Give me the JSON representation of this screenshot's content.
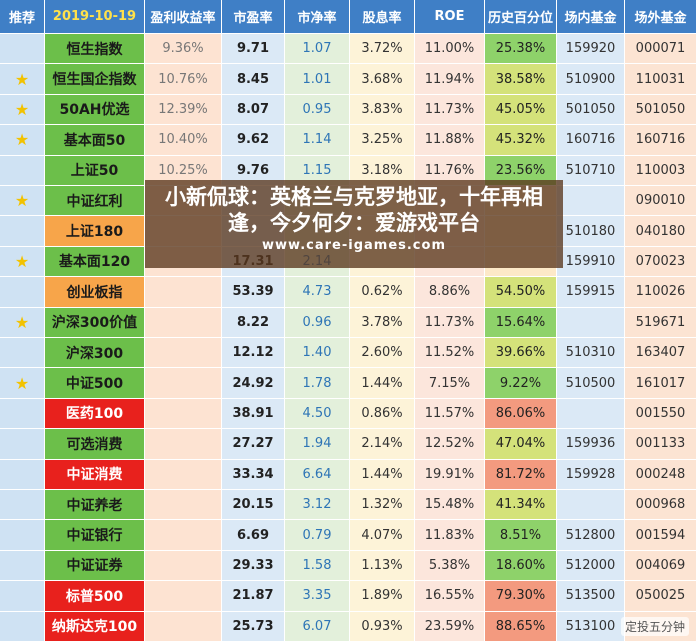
{
  "table": {
    "header": [
      "推荐",
      "2019-10-19",
      "盈利收益率",
      "市盈率",
      "市净率",
      "股息率",
      "ROE",
      "历史百分位",
      "场内基金",
      "场外基金"
    ],
    "row_colors": [
      "green",
      "green",
      "green",
      "green",
      "green",
      "green",
      "orange",
      "green",
      "orange",
      "green",
      "green",
      "green",
      "red",
      "green",
      "red",
      "green",
      "green",
      "green",
      "red",
      "red"
    ],
    "rows": [
      [
        null,
        "恒生指数",
        "9.36%",
        "9.71",
        "1.07",
        "3.72%",
        "11.00%",
        "25.38%",
        "159920",
        "000071"
      ],
      [
        "★",
        "恒生国企指数",
        "10.76%",
        "8.45",
        "1.01",
        "3.68%",
        "11.94%",
        "38.58%",
        "510900",
        "110031"
      ],
      [
        "★",
        "50AH优选",
        "12.39%",
        "8.07",
        "0.95",
        "3.83%",
        "11.73%",
        "45.05%",
        "501050",
        "501050"
      ],
      [
        "★",
        "基本面50",
        "10.40%",
        "9.62",
        "1.14",
        "3.25%",
        "11.88%",
        "45.32%",
        "160716",
        "160716"
      ],
      [
        null,
        "上证50",
        "10.25%",
        "9.76",
        "1.15",
        "3.18%",
        "11.76%",
        "23.56%",
        "510710",
        "110003"
      ],
      [
        "★",
        "中证红利",
        null,
        null,
        null,
        null,
        null,
        null,
        null,
        "090010"
      ],
      [
        null,
        "上证180",
        null,
        null,
        null,
        null,
        null,
        null,
        "510180",
        "040180"
      ],
      [
        "★",
        "基本面120",
        null,
        "17.31",
        "2.14",
        null,
        null,
        null,
        "159910",
        "070023"
      ],
      [
        null,
        "创业板指",
        null,
        "53.39",
        "4.73",
        "0.62%",
        "8.86%",
        "54.50%",
        "159915",
        "110026"
      ],
      [
        "★",
        "沪深300价值",
        null,
        "8.22",
        "0.96",
        "3.78%",
        "11.73%",
        "15.64%",
        null,
        "519671"
      ],
      [
        null,
        "沪深300",
        null,
        "12.12",
        "1.40",
        "2.60%",
        "11.52%",
        "39.66%",
        "510310",
        "163407"
      ],
      [
        "★",
        "中证500",
        null,
        "24.92",
        "1.78",
        "1.44%",
        "7.15%",
        "9.22%",
        "510500",
        "161017"
      ],
      [
        null,
        "医药100",
        null,
        "38.91",
        "4.50",
        "0.86%",
        "11.57%",
        "86.06%",
        null,
        "001550"
      ],
      [
        null,
        "可选消费",
        null,
        "27.27",
        "1.94",
        "2.14%",
        "12.52%",
        "47.04%",
        "159936",
        "001133"
      ],
      [
        null,
        "中证消费",
        null,
        "33.34",
        "6.64",
        "1.44%",
        "19.91%",
        "81.72%",
        "159928",
        "000248"
      ],
      [
        null,
        "中证养老",
        null,
        "20.15",
        "3.12",
        "1.32%",
        "15.48%",
        "41.34%",
        null,
        "000968"
      ],
      [
        null,
        "中证银行",
        null,
        "6.69",
        "0.79",
        "4.07%",
        "11.83%",
        "8.51%",
        "512800",
        "001594"
      ],
      [
        null,
        "中证证券",
        null,
        "29.33",
        "1.58",
        "1.13%",
        "5.38%",
        "18.60%",
        "512000",
        "004069"
      ],
      [
        null,
        "标普500",
        null,
        "21.87",
        "3.35",
        "1.89%",
        "16.55%",
        "79.30%",
        "513500",
        "050025"
      ],
      [
        null,
        "纳斯达克100",
        null,
        "25.73",
        "6.07",
        "0.93%",
        "23.59%",
        "88.65%",
        "513100",
        null
      ]
    ]
  },
  "overlay": {
    "title": "小新侃球：英格兰与克罗地亚，十年再相逢，今夕何夕：爱游戏平台",
    "url": "www.care-igames.com"
  },
  "watermark": "定投五分钟"
}
